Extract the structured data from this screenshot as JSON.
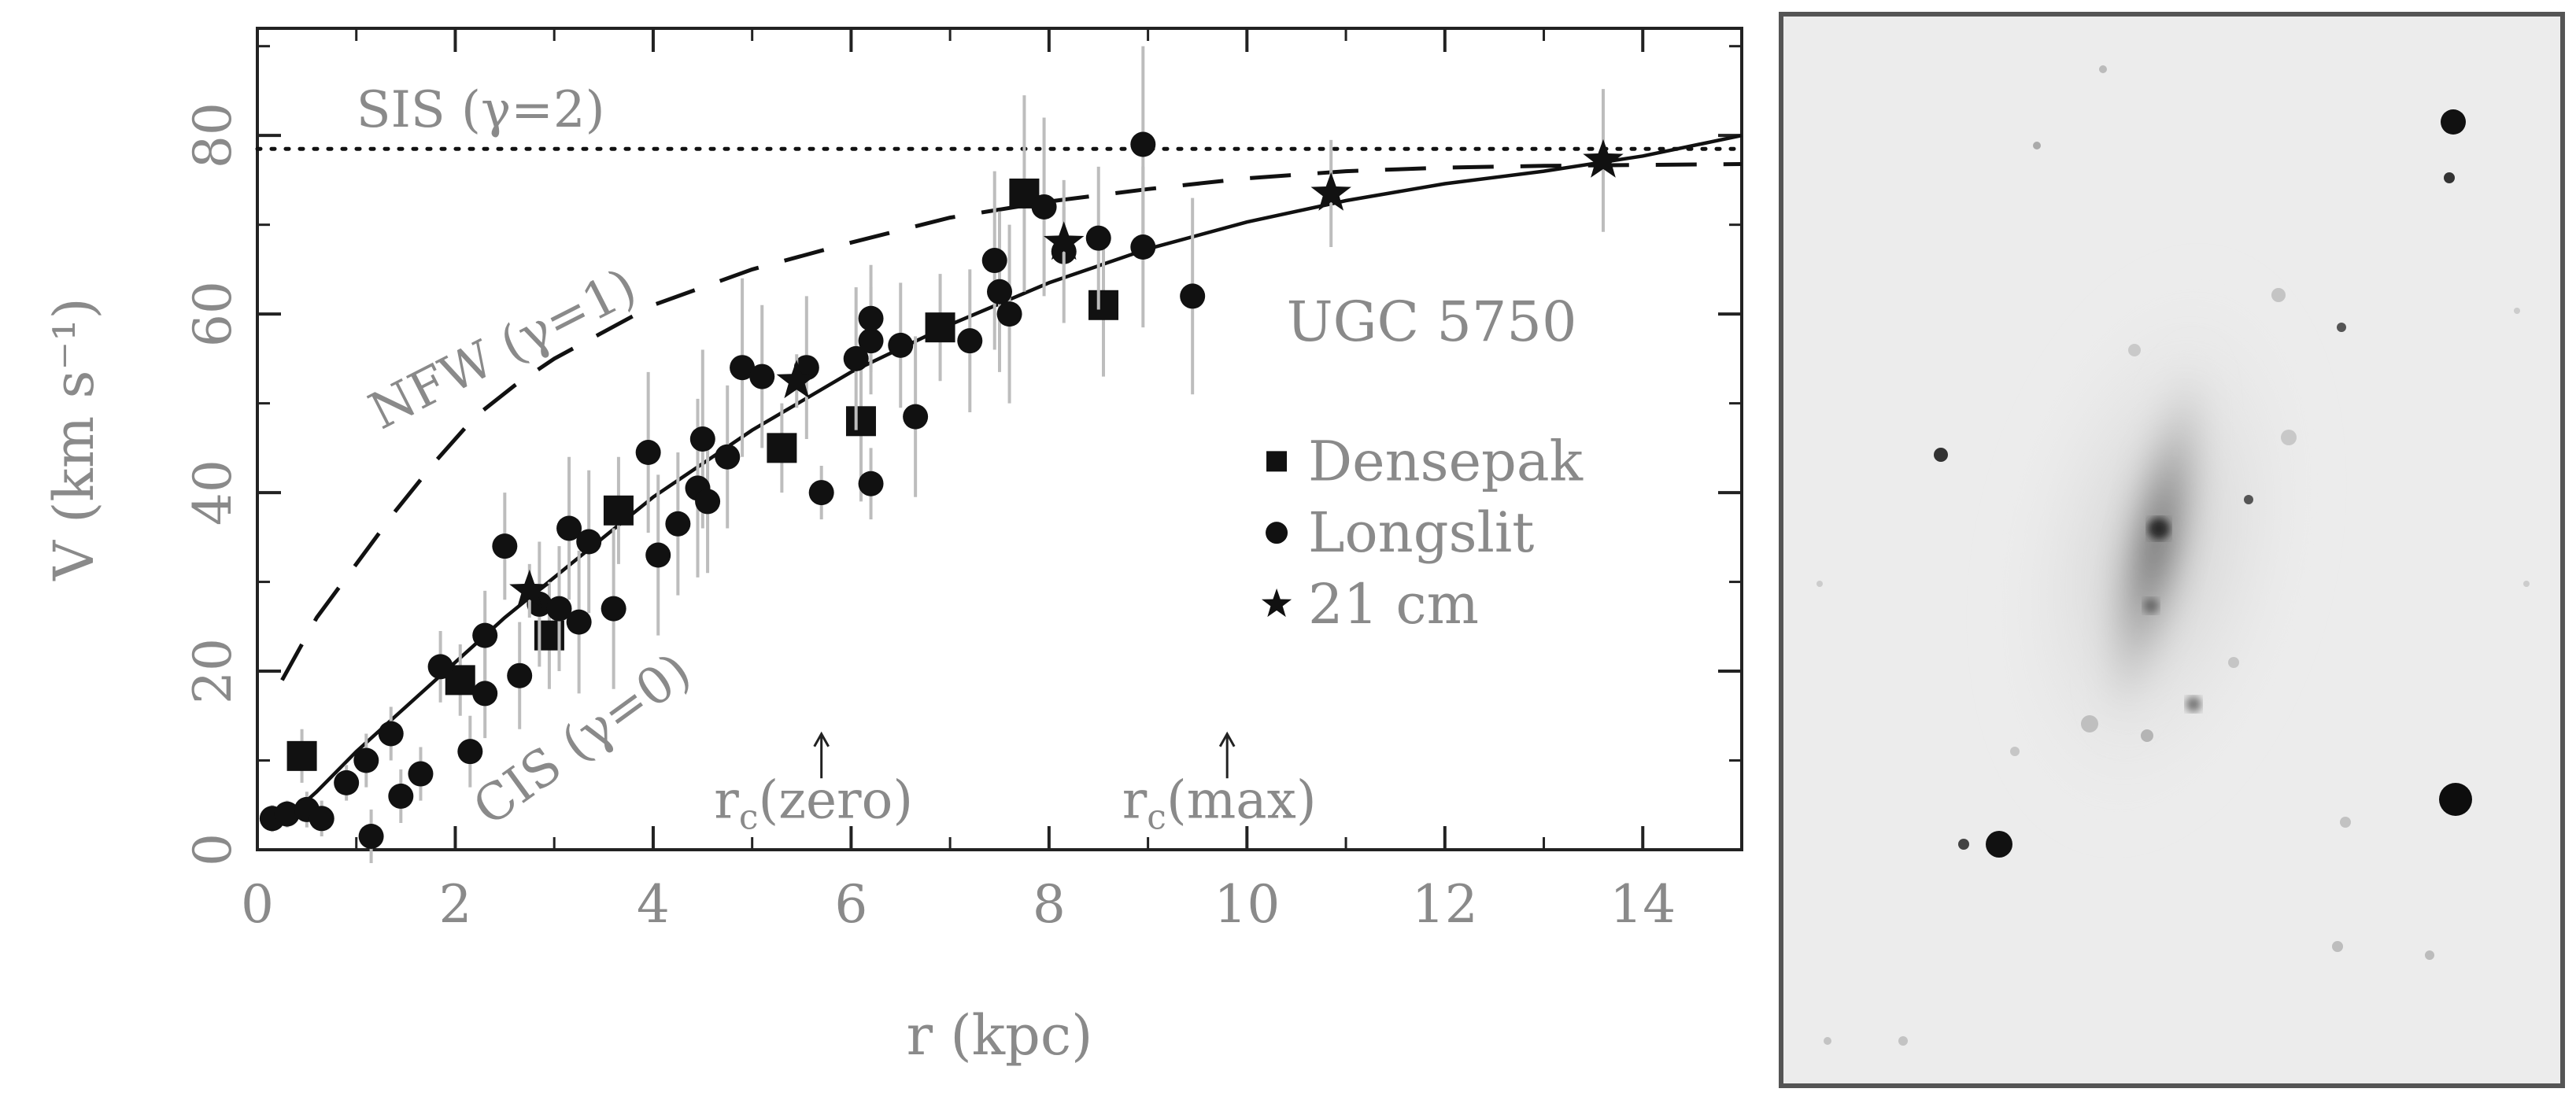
{
  "chart_data": {
    "type": "scatter",
    "xlabel": "r (kpc)",
    "ylabel": "V (km s⁻¹)",
    "xlim": [
      0,
      15
    ],
    "ylim": [
      0,
      92
    ],
    "x_ticks": [
      0,
      2,
      4,
      6,
      8,
      10,
      12,
      14
    ],
    "y_ticks": [
      0,
      20,
      40,
      60,
      80
    ],
    "grid": false,
    "legend_position": "right-middle",
    "legend_title": "UGC 5750",
    "reference_lines": [
      {
        "name": "SIS (γ=2)",
        "style": "dotted",
        "y": 78.5
      }
    ],
    "models": [
      {
        "name": "NFW (γ=1)",
        "style": "dashed",
        "points": [
          [
            0.25,
            19
          ],
          [
            0.6,
            26
          ],
          [
            1.0,
            32
          ],
          [
            1.4,
            38
          ],
          [
            1.8,
            43.5
          ],
          [
            2.2,
            48.5
          ],
          [
            2.6,
            52
          ],
          [
            3,
            55
          ],
          [
            3.5,
            58
          ],
          [
            4,
            61
          ],
          [
            5,
            65
          ],
          [
            6,
            68
          ],
          [
            7,
            70.8
          ],
          [
            8,
            72.6
          ],
          [
            9,
            74
          ],
          [
            10,
            75.2
          ],
          [
            11,
            76
          ],
          [
            12,
            76.4
          ],
          [
            13,
            76.6
          ],
          [
            14,
            76.7
          ],
          [
            15,
            76.8
          ]
        ]
      },
      {
        "name": "CIS (γ=0)",
        "style": "solid",
        "points": [
          [
            0.3,
            3.5
          ],
          [
            0.6,
            6.5
          ],
          [
            1,
            11
          ],
          [
            1.5,
            16
          ],
          [
            2,
            21
          ],
          [
            2.5,
            26
          ],
          [
            3,
            30.5
          ],
          [
            3.5,
            35
          ],
          [
            4,
            39.5
          ],
          [
            5,
            47
          ],
          [
            6,
            53.5
          ],
          [
            7,
            58.8
          ],
          [
            8,
            63.5
          ],
          [
            9,
            67.3
          ],
          [
            10,
            70.3
          ],
          [
            11,
            72.7
          ],
          [
            12,
            74.6
          ],
          [
            13,
            76
          ],
          [
            14,
            77.7
          ],
          [
            15,
            80
          ]
        ]
      }
    ],
    "series": [
      {
        "name": "Densepak",
        "marker": "square",
        "points": [
          {
            "x": 0.45,
            "y": 10.5,
            "err": 3
          },
          {
            "x": 2.05,
            "y": 19,
            "err": 4
          },
          {
            "x": 2.95,
            "y": 24,
            "err": 6
          },
          {
            "x": 3.65,
            "y": 38,
            "err": 6
          },
          {
            "x": 5.3,
            "y": 45,
            "err": 5
          },
          {
            "x": 6.1,
            "y": 48,
            "err": 9
          },
          {
            "x": 6.9,
            "y": 58.5,
            "err": 6
          },
          {
            "x": 7.75,
            "y": 73.5,
            "err": 11
          },
          {
            "x": 8.55,
            "y": 61,
            "err": 8
          }
        ]
      },
      {
        "name": "Longslit",
        "marker": "circle",
        "points": [
          {
            "x": 0.15,
            "y": 3.5,
            "err": 1.5
          },
          {
            "x": 0.3,
            "y": 4,
            "err": 1.5
          },
          {
            "x": 0.5,
            "y": 4.5,
            "err": 2
          },
          {
            "x": 0.65,
            "y": 3.5,
            "err": 2
          },
          {
            "x": 0.9,
            "y": 7.5,
            "err": 2
          },
          {
            "x": 1.1,
            "y": 10,
            "err": 3
          },
          {
            "x": 1.15,
            "y": 1.5,
            "err": 3
          },
          {
            "x": 1.35,
            "y": 13,
            "err": 3
          },
          {
            "x": 1.45,
            "y": 6,
            "err": 3
          },
          {
            "x": 1.65,
            "y": 8.5,
            "err": 3
          },
          {
            "x": 1.85,
            "y": 20.5,
            "err": 4
          },
          {
            "x": 2.15,
            "y": 11,
            "err": 4
          },
          {
            "x": 2.3,
            "y": 17.5,
            "err": 5
          },
          {
            "x": 2.3,
            "y": 24,
            "err": 5
          },
          {
            "x": 2.5,
            "y": 34,
            "err": 6
          },
          {
            "x": 2.65,
            "y": 19.5,
            "err": 6
          },
          {
            "x": 2.85,
            "y": 27.5,
            "err": 7
          },
          {
            "x": 3.05,
            "y": 27,
            "err": 7
          },
          {
            "x": 3.15,
            "y": 36,
            "err": 8
          },
          {
            "x": 3.25,
            "y": 25.5,
            "err": 8
          },
          {
            "x": 3.35,
            "y": 34.5,
            "err": 8
          },
          {
            "x": 3.6,
            "y": 27,
            "err": 9
          },
          {
            "x": 3.95,
            "y": 44.5,
            "err": 9
          },
          {
            "x": 4.05,
            "y": 33,
            "err": 9
          },
          {
            "x": 4.25,
            "y": 36.5,
            "err": 8
          },
          {
            "x": 4.45,
            "y": 40.5,
            "err": 10
          },
          {
            "x": 4.5,
            "y": 46,
            "err": 10
          },
          {
            "x": 4.55,
            "y": 39,
            "err": 8
          },
          {
            "x": 4.75,
            "y": 44,
            "err": 8
          },
          {
            "x": 4.9,
            "y": 54,
            "err": 10
          },
          {
            "x": 5.1,
            "y": 53,
            "err": 8
          },
          {
            "x": 5.55,
            "y": 54,
            "err": 8
          },
          {
            "x": 5.7,
            "y": 40,
            "err": 3
          },
          {
            "x": 6.05,
            "y": 55,
            "err": 8
          },
          {
            "x": 6.2,
            "y": 57,
            "err": 6
          },
          {
            "x": 6.2,
            "y": 59.5,
            "err": 6
          },
          {
            "x": 6.2,
            "y": 41,
            "err": 4
          },
          {
            "x": 6.5,
            "y": 56.5,
            "err": 7
          },
          {
            "x": 6.65,
            "y": 48.5,
            "err": 9
          },
          {
            "x": 7.2,
            "y": 57,
            "err": 8
          },
          {
            "x": 7.45,
            "y": 66,
            "err": 10
          },
          {
            "x": 7.5,
            "y": 62.5,
            "err": 9
          },
          {
            "x": 7.6,
            "y": 60,
            "err": 10
          },
          {
            "x": 7.95,
            "y": 72,
            "err": 10
          },
          {
            "x": 8.15,
            "y": 67,
            "err": 8
          },
          {
            "x": 8.5,
            "y": 68.5,
            "err": 8
          },
          {
            "x": 8.95,
            "y": 79,
            "err": 11
          },
          {
            "x": 8.95,
            "y": 67.5,
            "err": 9
          },
          {
            "x": 9.45,
            "y": 62,
            "err": 11
          }
        ]
      },
      {
        "name": "21 cm",
        "marker": "star",
        "points": [
          {
            "x": 2.75,
            "y": 29,
            "err": 3
          },
          {
            "x": 5.45,
            "y": 52.5,
            "err": 3
          },
          {
            "x": 8.15,
            "y": 68,
            "err": 4
          },
          {
            "x": 10.85,
            "y": 73.5,
            "err": 6
          },
          {
            "x": 13.6,
            "y": 77.2,
            "err": 8
          }
        ]
      }
    ],
    "annotations": [
      {
        "base": "r",
        "sub": "c",
        "rest": "(zero)",
        "x": 5.7
      },
      {
        "base": "r",
        "sub": "c",
        "rest": "(max)",
        "x": 9.8
      }
    ]
  },
  "image_panel": {
    "content": "grayscale-galaxy-image",
    "background": "#ececec"
  }
}
